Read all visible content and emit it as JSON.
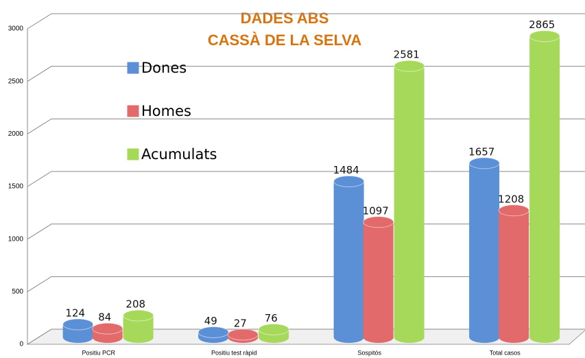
{
  "chart_data": {
    "type": "bar",
    "title": [
      "DADES ABS",
      "CASSÀ DE LA SELVA"
    ],
    "categories": [
      "Positiu PCR",
      "Positiu test ràpid",
      "Sospitós",
      "Total casos"
    ],
    "series": [
      {
        "name": "Dones",
        "color": "#5b8fd6",
        "values": [
          124,
          49,
          1484,
          1657
        ]
      },
      {
        "name": "Homes",
        "color": "#e26a6a",
        "values": [
          84,
          27,
          1097,
          1208
        ]
      },
      {
        "name": "Acumulats",
        "color": "#a6d95a",
        "values": [
          208,
          76,
          2581,
          2865
        ]
      }
    ],
    "ylim": [
      0,
      3000
    ],
    "yticks": [
      0,
      500,
      1000,
      1500,
      2000,
      2500,
      3000
    ],
    "grid": true
  }
}
